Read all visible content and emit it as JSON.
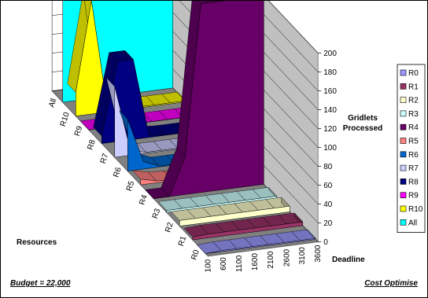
{
  "chart_data": {
    "type": "area",
    "z_axis": {
      "title": "Gridlets Processed",
      "ticks": [
        0,
        20,
        40,
        60,
        80,
        100,
        120,
        140,
        160,
        180,
        200
      ],
      "range": [
        0,
        200
      ]
    },
    "x_axis": {
      "title": "Deadline",
      "ticks": [
        "100",
        "600",
        "1100",
        "1600",
        "2100",
        "2600",
        "3100",
        "3600"
      ]
    },
    "y_axis": {
      "title": "Resources",
      "ticks": [
        "R0",
        "R1",
        "R2",
        "R3",
        "R4",
        "R5",
        "R6",
        "R7",
        "R8",
        "R9",
        "R10",
        "All"
      ]
    },
    "series": [
      {
        "name": "R0",
        "color": "#9999ff",
        "values": [
          0,
          1,
          1,
          1,
          1,
          1,
          1,
          1
        ]
      },
      {
        "name": "R1",
        "color": "#993366",
        "values": [
          3,
          4,
          4,
          4,
          4,
          4,
          4,
          4
        ]
      },
      {
        "name": "R2",
        "color": "#ffffcc",
        "values": [
          6,
          6,
          6,
          6,
          6,
          6,
          6,
          6
        ]
      },
      {
        "name": "R3",
        "color": "#ccffff",
        "values": [
          2,
          2,
          2,
          2,
          2,
          2,
          2,
          2
        ]
      },
      {
        "name": "R4",
        "color": "#660066",
        "values": [
          0,
          0,
          40,
          200,
          200,
          200,
          200,
          200
        ]
      },
      {
        "name": "R5",
        "color": "#ff8080",
        "values": [
          6,
          2,
          1,
          1,
          1,
          1,
          1,
          1
        ]
      },
      {
        "name": "R6",
        "color": "#0066cc",
        "values": [
          55,
          8,
          1,
          1,
          1,
          1,
          1,
          1
        ]
      },
      {
        "name": "R7",
        "color": "#ccccff",
        "values": [
          75,
          5,
          1,
          1,
          1,
          1,
          1,
          1
        ]
      },
      {
        "name": "R8",
        "color": "#000080",
        "values": [
          8,
          85,
          85,
          2,
          1,
          1,
          1,
          1
        ]
      },
      {
        "name": "R9",
        "color": "#ff00ff",
        "values": [
          0,
          0,
          0,
          0,
          0,
          0,
          0,
          0
        ]
      },
      {
        "name": "R10",
        "color": "#ffff00",
        "values": [
          25,
          120,
          5,
          1,
          1,
          1,
          1,
          1
        ]
      },
      {
        "name": "All",
        "color": "#00ffff",
        "values": [
          200,
          200,
          200,
          200,
          200,
          200,
          200,
          200
        ]
      }
    ],
    "legend_placement": "right",
    "grid": true
  },
  "footer": {
    "left": "Budget = 22,000",
    "right": "Cost Optimise"
  }
}
